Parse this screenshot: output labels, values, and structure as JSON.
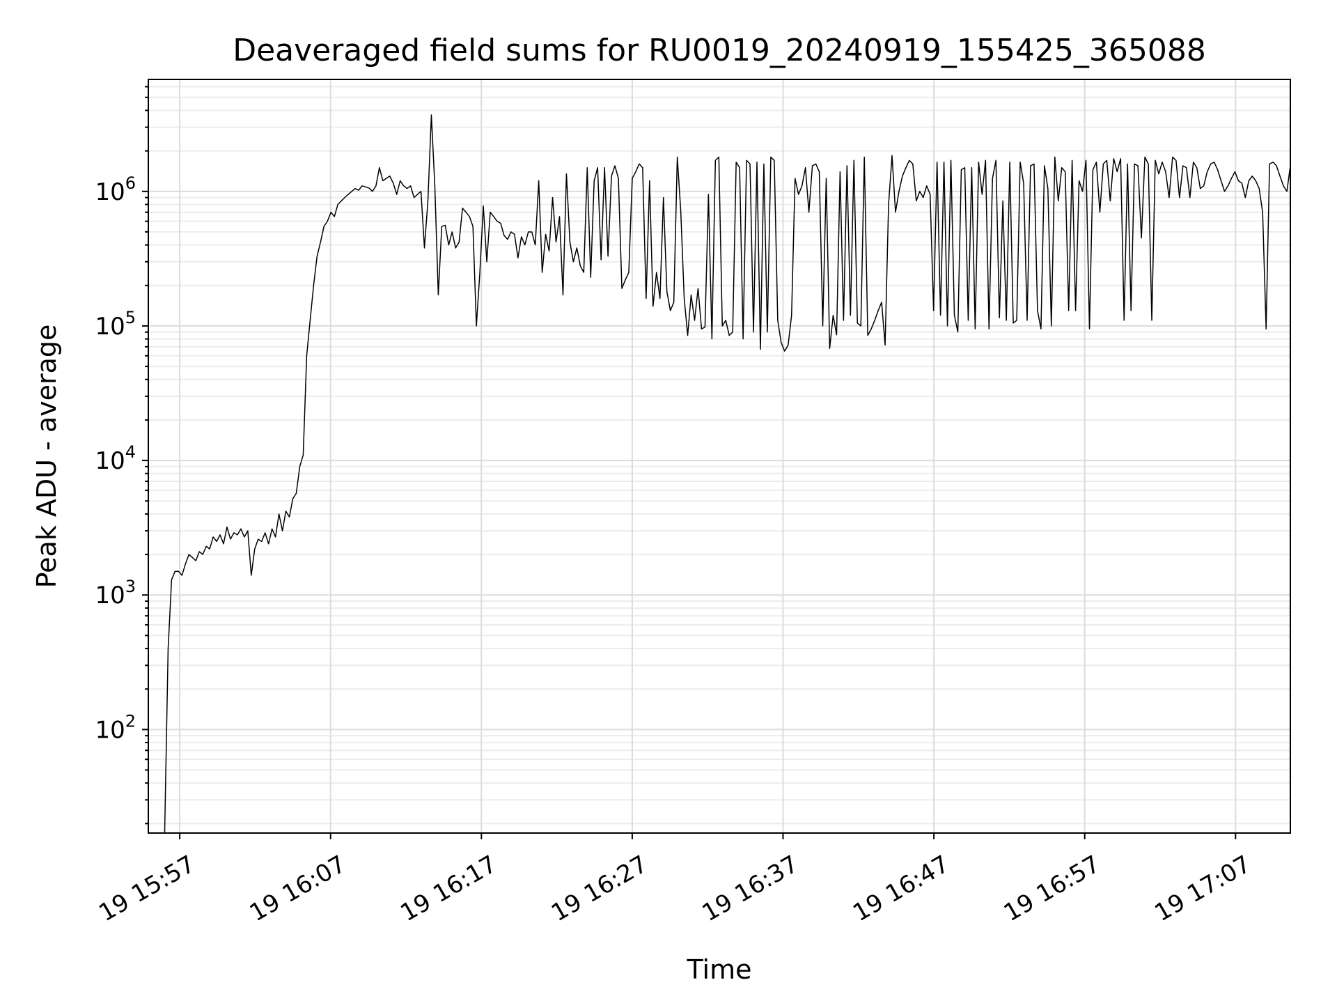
{
  "chart_data": {
    "type": "line",
    "title": "Deaveraged field sums for RU0019_20240919_155425_365088",
    "xlabel": "Time",
    "ylabel": "Peak ADU - average",
    "y_scale": "log",
    "ylim": [
      17,
      6800000
    ],
    "xlim": [
      "2024-09-19 15:54:55",
      "2024-09-19 17:10:38"
    ],
    "grid": true,
    "x_ticks": [
      "19 15:57",
      "19 16:07",
      "19 16:17",
      "19 16:27",
      "19 16:37",
      "19 16:47",
      "19 16:57",
      "19 17:07"
    ],
    "y_ticks": [
      100,
      1000,
      10000,
      100000,
      1000000
    ],
    "y_tick_labels": [
      {
        "base": "10",
        "exp": "2"
      },
      {
        "base": "10",
        "exp": "3"
      },
      {
        "base": "10",
        "exp": "4"
      },
      {
        "base": "10",
        "exp": "5"
      },
      {
        "base": "10",
        "exp": "6"
      }
    ],
    "line_color": "#000000",
    "series": [
      {
        "name": "",
        "x_start": "2024-09-19 15:56:00",
        "x_end": "2024-09-19 17:10:38",
        "values": [
          17,
          400,
          1300,
          1500,
          1500,
          1400,
          1700,
          2000,
          1900,
          1800,
          2100,
          2000,
          2300,
          2200,
          2700,
          2500,
          2800,
          2400,
          3200,
          2600,
          2900,
          2800,
          3100,
          2700,
          3000,
          1400,
          2200,
          2600,
          2500,
          2900,
          2400,
          3100,
          2700,
          4000,
          3000,
          4200,
          3800,
          5200,
          5700,
          9000,
          11000,
          60000,
          110000,
          200000,
          330000,
          420000,
          550000,
          600000,
          700000,
          650000,
          800000,
          850000,
          900000,
          950000,
          1000000,
          1050000,
          1020000,
          1100000,
          1080000,
          1060000,
          1000000,
          1100000,
          1500000,
          1200000,
          1250000,
          1300000,
          1150000,
          950000,
          1200000,
          1100000,
          1050000,
          1100000,
          900000,
          950000,
          1000000,
          380000,
          850000,
          3700000,
          1100000,
          170000,
          550000,
          560000,
          400000,
          500000,
          380000,
          420000,
          750000,
          700000,
          650000,
          550000,
          100000,
          250000,
          780000,
          300000,
          700000,
          650000,
          600000,
          580000,
          470000,
          440000,
          500000,
          480000,
          320000,
          460000,
          400000,
          500000,
          500000,
          400000,
          1200000,
          250000,
          480000,
          360000,
          900000,
          420000,
          650000,
          170000,
          1350000,
          420000,
          300000,
          380000,
          280000,
          250000,
          1500000,
          230000,
          1200000,
          1500000,
          310000,
          1500000,
          330000,
          1300000,
          1550000,
          1250000,
          190000,
          220000,
          250000,
          1250000,
          1400000,
          1600000,
          1500000,
          160000,
          1200000,
          140000,
          250000,
          160000,
          900000,
          180000,
          130000,
          150000,
          1800000,
          720000,
          160000,
          85000,
          170000,
          110000,
          190000,
          95000,
          98000,
          950000,
          80000,
          1700000,
          1800000,
          100000,
          110000,
          85000,
          90000,
          1650000,
          1500000,
          80000,
          1700000,
          1600000,
          90000,
          1650000,
          67000,
          1600000,
          90000,
          1800000,
          1700000,
          110000,
          75000,
          65000,
          72000,
          120000,
          1250000,
          950000,
          1100000,
          1500000,
          700000,
          1550000,
          1600000,
          1400000,
          100000,
          1250000,
          68000,
          120000,
          86000,
          1400000,
          110000,
          1550000,
          120000,
          1700000,
          105000,
          100000,
          1800000,
          85000,
          95000,
          110000,
          130000,
          150000,
          72000,
          800000,
          1850000,
          700000,
          1000000,
          1300000,
          1500000,
          1700000,
          1600000,
          850000,
          1000000,
          900000,
          1100000,
          950000,
          130000,
          1650000,
          120000,
          1650000,
          100000,
          1700000,
          120000,
          90000,
          1450000,
          1500000,
          110000,
          1500000,
          95000,
          1650000,
          950000,
          1700000,
          95000,
          1250000,
          1700000,
          115000,
          850000,
          110000,
          1650000,
          105000,
          110000,
          1650000,
          1150000,
          110000,
          1550000,
          1600000,
          130000,
          95000,
          1550000,
          1050000,
          100000,
          1800000,
          850000,
          1500000,
          1400000,
          130000,
          1700000,
          130000,
          1200000,
          1000000,
          1700000,
          95000,
          1450000,
          1650000,
          700000,
          1600000,
          1700000,
          850000,
          1750000,
          1400000,
          1750000,
          110000,
          1600000,
          130000,
          1600000,
          1550000,
          450000,
          1800000,
          1600000,
          110000,
          1700000,
          1350000,
          1650000,
          1400000,
          900000,
          1800000,
          1700000,
          900000,
          1550000,
          1500000,
          900000,
          1650000,
          1500000,
          1050000,
          1100000,
          1400000,
          1600000,
          1650000,
          1450000,
          1200000,
          1000000,
          1100000,
          1250000,
          1400000,
          1200000,
          1150000,
          900000,
          1200000,
          1300000,
          1200000,
          1050000,
          700000,
          95000,
          1600000,
          1650000,
          1550000,
          1300000,
          1100000,
          1000000,
          1550000
        ]
      }
    ]
  }
}
